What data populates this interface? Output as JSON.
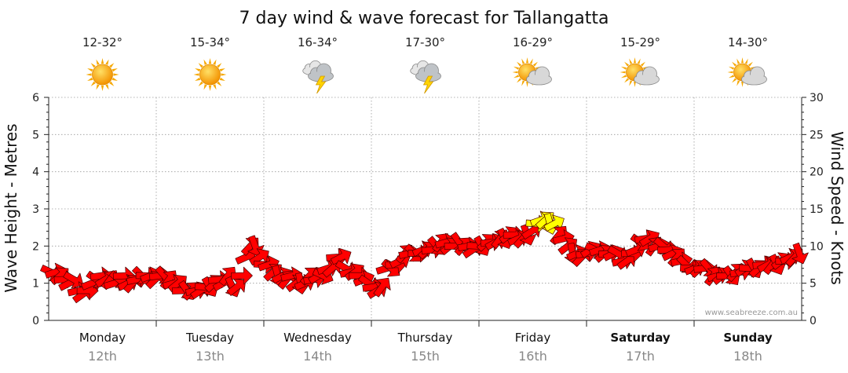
{
  "chart_data": {
    "type": "line",
    "title": "7 day wind & wave forecast for Tallangatta",
    "ylabel_left": "Wave Height - Metres",
    "ylabel_right": "Wind Speed - Knots",
    "ylim_left": [
      0,
      6
    ],
    "ylim_right": [
      0,
      30
    ],
    "yticks_left": [
      "0",
      "1",
      "2",
      "3",
      "4",
      "5",
      "6"
    ],
    "yticks_right": [
      "0",
      "5",
      "10",
      "15",
      "20",
      "25",
      "30"
    ],
    "watermark": "www.seabreeze.com.au",
    "days": [
      {
        "name": "Monday",
        "date": "12th",
        "temp": "12-32°",
        "icon": "sunny-icon",
        "bold": false
      },
      {
        "name": "Tuesday",
        "date": "13th",
        "temp": "15-34°",
        "icon": "sunny-icon",
        "bold": false
      },
      {
        "name": "Wednesday",
        "date": "14th",
        "temp": "16-34°",
        "icon": "storm-icon",
        "bold": false
      },
      {
        "name": "Thursday",
        "date": "15th",
        "temp": "17-30°",
        "icon": "storm-icon",
        "bold": false
      },
      {
        "name": "Friday",
        "date": "16th",
        "temp": "16-29°",
        "icon": "partly-cloudy-icon",
        "bold": false
      },
      {
        "name": "Saturday",
        "date": "17th",
        "temp": "15-29°",
        "icon": "partly-cloudy-icon",
        "bold": true
      },
      {
        "name": "Sunday",
        "date": "18th",
        "temp": "14-30°",
        "icon": "partly-cloudy-icon",
        "bold": true
      }
    ],
    "series": [
      {
        "name": "Wind Speed (knots)",
        "axis": "right",
        "color": "#ff0000",
        "highlight_color": "#ffff00",
        "highlight_threshold": 12.5,
        "points_per_day": 24,
        "values": [
          6.5,
          6.5,
          6,
          5.5,
          5,
          5.5,
          4,
          3.5,
          4,
          5,
          5.5,
          6,
          5.5,
          5.5,
          5,
          5.5,
          6,
          5,
          5,
          5.5,
          6,
          6,
          6,
          5.5,
          6,
          6,
          5.5,
          5,
          5,
          4,
          4,
          4,
          4,
          4,
          4.5,
          4.5,
          5,
          5.5,
          5,
          6,
          4.5,
          4.5,
          6,
          8.5,
          10,
          10,
          8.5,
          7.5,
          7.5,
          6.5,
          6,
          6,
          5.5,
          6,
          5,
          5,
          5,
          6,
          5.5,
          6,
          6,
          7,
          7,
          8.5,
          8.5,
          7,
          6.5,
          6.5,
          6,
          5.5,
          5,
          4.5,
          4,
          4.5,
          7,
          7,
          7.5,
          8,
          9,
          9,
          9,
          9,
          9.5,
          9.5,
          9.5,
          10,
          10.5,
          10.5,
          10,
          10,
          10.5,
          10,
          10,
          9.5,
          10,
          10,
          10.5,
          10.5,
          10.5,
          11,
          11,
          11.5,
          11.5,
          11,
          11,
          11.5,
          12,
          13,
          13.5,
          13.5,
          13,
          13,
          11.5,
          11,
          10,
          9,
          9,
          8.5,
          9,
          9.5,
          9.5,
          9.5,
          9,
          9,
          9,
          9,
          8,
          8,
          9,
          9.5,
          10.5,
          11,
          11,
          10,
          10,
          10,
          9.5,
          9,
          8.5,
          8,
          7.5,
          7,
          7,
          7,
          7,
          7,
          6,
          6,
          6,
          6,
          6,
          6.5,
          6.5,
          7,
          7,
          7,
          7,
          7.5,
          7.5,
          7.5,
          7.5,
          8,
          8,
          8.5,
          8.5,
          9
        ]
      }
    ]
  }
}
